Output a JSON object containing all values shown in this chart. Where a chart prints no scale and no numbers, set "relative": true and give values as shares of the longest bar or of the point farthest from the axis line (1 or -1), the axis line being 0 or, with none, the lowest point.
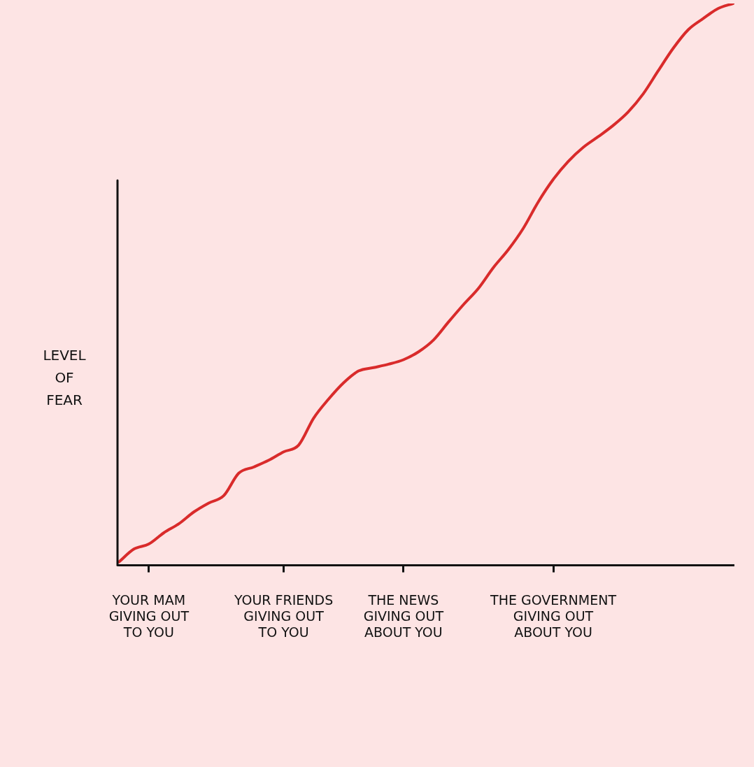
{
  "chart_data": {
    "type": "line",
    "relative": true,
    "ylabel": "LEVEL\nOF\nFEAR",
    "color": "#d92b2b",
    "marker": "none",
    "categories": [
      null,
      null,
      "YOUR MAM\nGIVING OUT\nTO YOU",
      null,
      null,
      null,
      null,
      null,
      null,
      null,
      null,
      "YOUR FRIENDS\nGIVING OUT\nTO YOU",
      null,
      null,
      null,
      null,
      null,
      null,
      null,
      "THE NEWS\nGIVING OUT\nABOUT YOU",
      null,
      null,
      null,
      null,
      null,
      null,
      null,
      null,
      null,
      "THE GOVERNMENT\nGIVING OUT\nABOUT YOU",
      null,
      null,
      null,
      null,
      null,
      null,
      null,
      null,
      null,
      null,
      null,
      null
    ],
    "values": [
      0.006,
      0.029,
      0.038,
      0.058,
      0.074,
      0.095,
      0.111,
      0.124,
      0.164,
      0.175,
      0.187,
      0.202,
      0.214,
      0.262,
      0.296,
      0.325,
      0.346,
      0.352,
      0.358,
      0.366,
      0.38,
      0.401,
      0.433,
      0.464,
      0.493,
      0.53,
      0.562,
      0.6,
      0.647,
      0.687,
      0.719,
      0.744,
      0.763,
      0.783,
      0.807,
      0.839,
      0.88,
      0.92,
      0.953,
      0.973,
      0.991,
      1
    ]
  }
}
